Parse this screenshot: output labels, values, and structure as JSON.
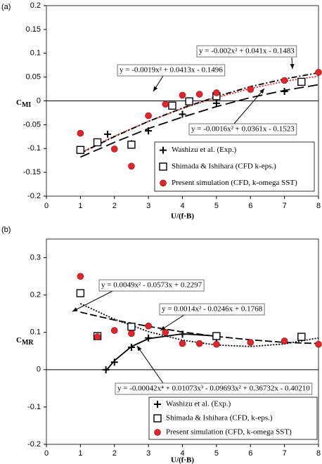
{
  "chart_data": [
    {
      "type": "scatter",
      "panel_label": "(a)",
      "xlabel": "U/(f·B)",
      "ylabel": "C",
      "ylabel_sub": "MI",
      "xlim": [
        0,
        8
      ],
      "xticks": [
        0,
        1,
        2,
        3,
        4,
        5,
        6,
        7,
        8
      ],
      "ylim": [
        -0.2,
        0.2
      ],
      "yticks": [
        -0.2,
        -0.15,
        -0.1,
        -0.05,
        0,
        0.05,
        0.1,
        0.15,
        0.2
      ],
      "legend": "lower right",
      "series": [
        {
          "name": "Washizu et al. (Exp.)",
          "color": "#000000",
          "marker": "plus",
          "x": [
            1.8,
            2.5,
            3,
            4,
            5,
            7
          ],
          "values": [
            -0.07,
            -0.09,
            -0.063,
            -0.028,
            -0.005,
            0.02
          ]
        },
        {
          "name": "Shimada & Ishihara (CFD k-eps.)",
          "color": "#000000",
          "marker": "square",
          "x": [
            1,
            1.5,
            2.5,
            3.7,
            4.2,
            5,
            7.5
          ],
          "values": [
            -0.103,
            -0.087,
            -0.092,
            -0.01,
            -0.001,
            0.01,
            0.04
          ]
        },
        {
          "name": "Present simulation (CFD, k-omega SST)",
          "color": "#e0262a",
          "marker": "circle",
          "x": [
            1,
            2,
            2.5,
            3,
            3.5,
            4,
            4.5,
            5,
            6,
            7,
            8
          ],
          "values": [
            -0.068,
            -0.101,
            -0.137,
            -0.031,
            -0.007,
            0.012,
            0.014,
            0.017,
            0.024,
            0.043,
            0.06
          ]
        }
      ],
      "fits": [
        {
          "color": "#e0262a",
          "dash": "2,2",
          "x": [
            1,
            2,
            3,
            4,
            5,
            6,
            7,
            8
          ],
          "values": [
            -0.109,
            -0.074,
            -0.043,
            -0.016,
            0.007,
            0.026,
            0.041,
            0.052
          ]
        },
        {
          "color": "#000000",
          "dash": "8,3,2,3",
          "x": [
            1,
            2,
            3,
            4,
            5,
            6,
            7,
            8
          ],
          "values": [
            -0.11,
            -0.075,
            -0.043,
            -0.015,
            0.009,
            0.03,
            0.046,
            0.059
          ]
        },
        {
          "color": "#000000",
          "dash": "14,6",
          "x": [
            1,
            2,
            3,
            4,
            5,
            6,
            7,
            8
          ],
          "values": [
            -0.118,
            -0.087,
            -0.058,
            -0.034,
            -0.012,
            0.007,
            0.022,
            0.034
          ]
        }
      ],
      "annotations": [
        "y = -0.002x² + 0.041x - 0.1483",
        "y = -0.0019x² + 0.0413x - 0.1496",
        "y = -0.0016x² + 0.0361x - 0.1523"
      ]
    },
    {
      "type": "scatter",
      "panel_label": "(b)",
      "xlabel": "U/(f·B)",
      "ylabel": "C",
      "ylabel_sub": "MR",
      "xlim": [
        0,
        8
      ],
      "xticks": [
        0,
        1,
        2,
        3,
        4,
        5,
        6,
        7,
        8
      ],
      "ylim": [
        -0.2,
        0.35
      ],
      "yticks": [
        -0.2,
        -0.1,
        0,
        0.1,
        0.2,
        0.3
      ],
      "legend": "lower right",
      "series": [
        {
          "name": "Washizu et al. (Exp.)",
          "color": "#000000",
          "marker": "plus",
          "x": [
            1.75,
            2,
            2.5,
            3,
            4,
            5
          ],
          "values": [
            0,
            0.02,
            0.06,
            0.085,
            0.095,
            0.085
          ]
        },
        {
          "name": "Shimada & Ishihara (CFD, k-eps.)",
          "color": "#000000",
          "marker": "square",
          "x": [
            1,
            1.5,
            2.5,
            5,
            7.5
          ],
          "values": [
            0.205,
            0.09,
            0.115,
            0.09,
            0.088
          ]
        },
        {
          "name": "Present simulation (CFD, k-omega SST)",
          "color": "#e0262a",
          "marker": "circle",
          "x": [
            1,
            1.5,
            2,
            2.5,
            3,
            3.5,
            4,
            4.5,
            5,
            6,
            7,
            8
          ],
          "values": [
            0.25,
            0.088,
            0.105,
            0.097,
            0.117,
            0.1,
            0.07,
            0.07,
            0.068,
            0.073,
            0.077,
            0.068
          ]
        }
      ],
      "fits": [
        {
          "color": "#000000",
          "dash": "2,2",
          "x": [
            1,
            2,
            3,
            4,
            5,
            6,
            7,
            8
          ],
          "values": [
            0.177,
            0.135,
            0.102,
            0.079,
            0.066,
            0.062,
            0.069,
            0.085
          ]
        },
        {
          "color": "#000000",
          "dash": "10,4",
          "x": [
            1,
            2,
            3,
            4,
            5,
            6,
            7,
            8
          ],
          "values": [
            0.154,
            0.133,
            0.116,
            0.101,
            0.089,
            0.08,
            0.073,
            0.07
          ]
        },
        {
          "color": "#000000",
          "dash": "",
          "x": [
            1.75,
            2,
            2.5,
            3,
            4,
            5
          ],
          "values": [
            -0.003,
            0.024,
            0.062,
            0.083,
            0.096,
            0.09
          ]
        }
      ],
      "annotations": [
        "y = 0.0049x² - 0.0573x + 0.2297",
        "y = 0.0014x² - 0.0246x + 0.1768",
        "y = -0.00042x⁴ + 0.01073x³ - 0.09693x² + 0.36732x - 0.40210"
      ]
    }
  ]
}
